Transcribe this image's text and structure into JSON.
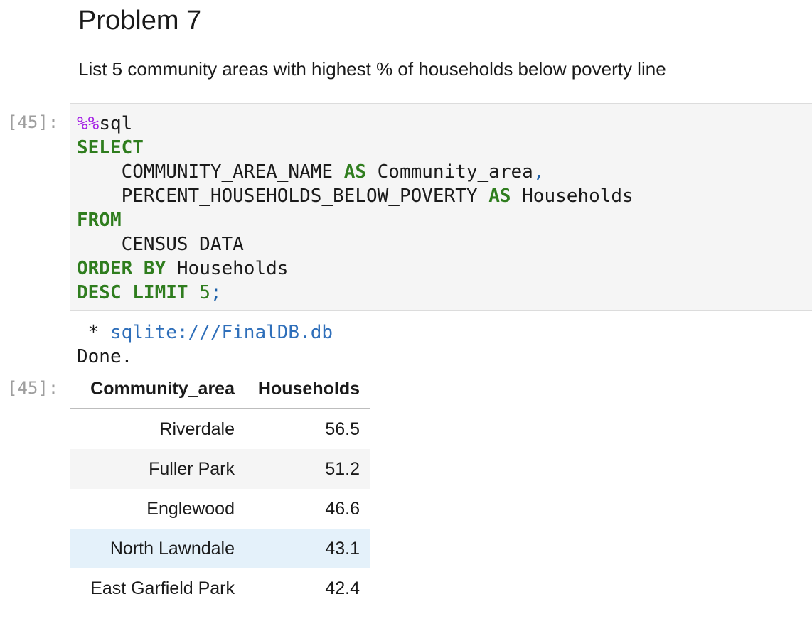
{
  "heading": "Problem 7",
  "description": "List 5 community areas with highest % of households below poverty line",
  "code_cell": {
    "prompt": "[45]:",
    "lines": [
      [
        {
          "text": "%%",
          "style": "magic"
        },
        {
          "text": "sql",
          "style": "plain"
        }
      ],
      [
        {
          "text": "SELECT",
          "style": "keyword"
        }
      ],
      [
        {
          "text": "    COMMUNITY_AREA_NAME ",
          "style": "plain"
        },
        {
          "text": "AS",
          "style": "keyword"
        },
        {
          "text": " Community_area",
          "style": "plain"
        },
        {
          "text": ",",
          "style": "punct"
        }
      ],
      [
        {
          "text": "    PERCENT_HOUSEHOLDS_BELOW_POVERTY ",
          "style": "plain"
        },
        {
          "text": "AS",
          "style": "keyword"
        },
        {
          "text": " Households",
          "style": "plain"
        }
      ],
      [
        {
          "text": "FROM",
          "style": "keyword"
        }
      ],
      [
        {
          "text": "    CENSUS_DATA",
          "style": "plain"
        }
      ],
      [
        {
          "text": "ORDER BY",
          "style": "keyword"
        },
        {
          "text": " Households",
          "style": "plain"
        }
      ],
      [
        {
          "text": "DESC LIMIT",
          "style": "keyword"
        },
        {
          "text": " ",
          "style": "plain"
        },
        {
          "text": "5",
          "style": "number"
        },
        {
          "text": ";",
          "style": "punct"
        }
      ]
    ]
  },
  "output": {
    "connection_marker": "*",
    "connection": "sqlite:///FinalDB.db",
    "status": "Done.",
    "prompt": "[45]:",
    "table": {
      "columns": [
        "Community_area",
        "Households"
      ],
      "rows": [
        [
          "Riverdale",
          56.5
        ],
        [
          "Fuller Park",
          51.2
        ],
        [
          "Englewood",
          46.6
        ],
        [
          "North Lawndale",
          43.1
        ],
        [
          "East Garfield Park",
          42.4
        ]
      ],
      "hovered_row": 3
    }
  }
}
